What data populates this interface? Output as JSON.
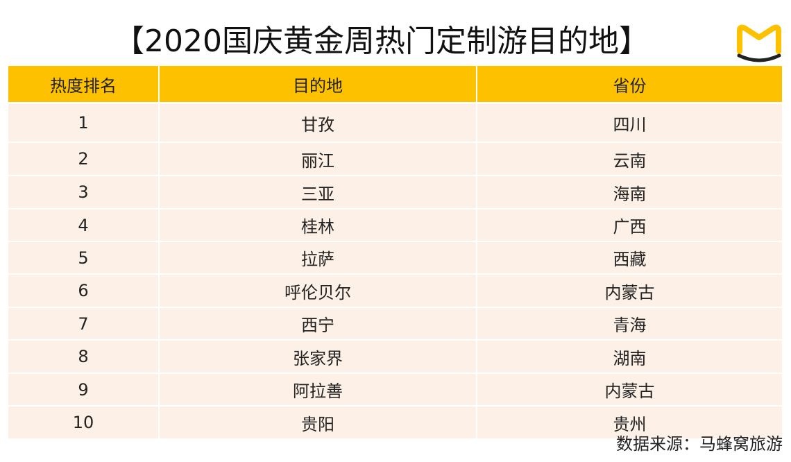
{
  "chart_data": {
    "type": "table",
    "title": "【2020国庆黄金周热门定制游目的地】",
    "columns": [
      "热度排名",
      "目的地",
      "省份"
    ],
    "rows": [
      [
        "1",
        "甘孜",
        "四川"
      ],
      [
        "2",
        "丽江",
        "云南"
      ],
      [
        "3",
        "三亚",
        "海南"
      ],
      [
        "4",
        "桂林",
        "广西"
      ],
      [
        "5",
        "拉萨",
        "西藏"
      ],
      [
        "6",
        "呼伦贝尔",
        "内蒙古"
      ],
      [
        "7",
        "西宁",
        "青海"
      ],
      [
        "8",
        "张家界",
        "湖南"
      ],
      [
        "9",
        "阿拉善",
        "内蒙古"
      ],
      [
        "10",
        "贵阳",
        "贵州"
      ]
    ],
    "source": "数据来源：马蜂窝旅游"
  },
  "colors": {
    "header_bg": "#fdc100",
    "row_bg": "#fdf0e6",
    "logo": "#fdc100",
    "logo_smile": "#222222"
  },
  "logo": {
    "icon": "mafengwo-m-icon"
  }
}
